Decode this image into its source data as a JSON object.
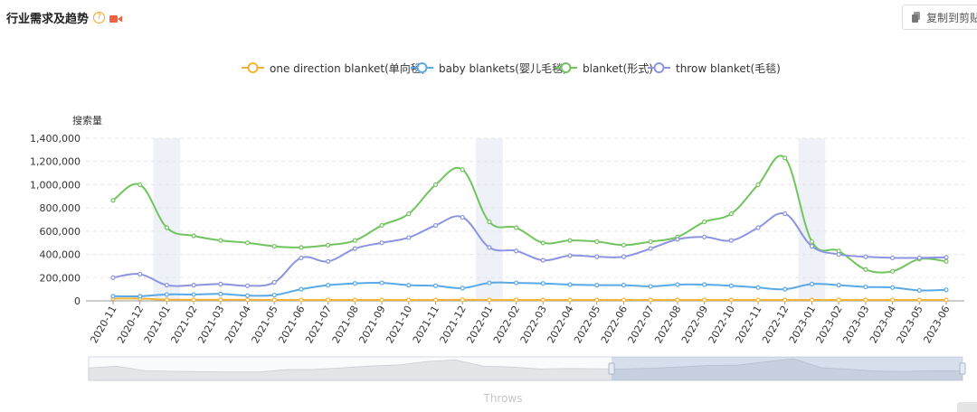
{
  "header": {
    "title": "行业需求及趋势",
    "help_symbol": "?",
    "video_icon": "video-camera-icon",
    "accent_color": "#f0623f"
  },
  "toolbar": {
    "copy_label": "复制到剪贴板",
    "copy_icon": "copy-icon"
  },
  "footer": {
    "data_zoom_label": "Throws"
  },
  "chart_data": {
    "type": "line",
    "ylabel": "搜索量",
    "xlabel": "",
    "ylim": [
      0,
      1400000
    ],
    "yticks": [
      0,
      200000,
      400000,
      600000,
      800000,
      1000000,
      1200000,
      1400000
    ],
    "ytick_labels": [
      "0",
      "200,000",
      "400,000",
      "600,000",
      "800,000",
      "1,000,000",
      "1,200,000",
      "1,400,000"
    ],
    "grid": true,
    "legend_position": "top-center",
    "categories": [
      "2020-11",
      "2020-12",
      "2021-01",
      "2021-02",
      "2021-03",
      "2021-04",
      "2021-05",
      "2021-06",
      "2021-07",
      "2021-08",
      "2021-09",
      "2021-10",
      "2021-11",
      "2021-12",
      "2022-01",
      "2022-02",
      "2022-03",
      "2022-04",
      "2022-05",
      "2022-06",
      "2022-07",
      "2022-08",
      "2022-09",
      "2022-10",
      "2022-11",
      "2022-12",
      "2023-01",
      "2023-02",
      "2023-03",
      "2023-04",
      "2023-05",
      "2023-06"
    ],
    "highlight_bands": [
      "2021-01",
      "2022-01",
      "2023-01"
    ],
    "series": [
      {
        "name": "one direction blanket(单向毯)",
        "color": "#f5b335",
        "values": [
          20000,
          20000,
          10000,
          10000,
          10000,
          10000,
          8000,
          8000,
          8000,
          8000,
          8000,
          8000,
          8000,
          10000,
          8000,
          8000,
          8000,
          8000,
          8000,
          8000,
          8000,
          8000,
          8000,
          8000,
          8000,
          8000,
          8000,
          8000,
          8000,
          8000,
          8000,
          8000
        ]
      },
      {
        "name": "baby blankets(婴儿毛毯)",
        "color": "#5aa9e6",
        "values": [
          40000,
          40000,
          55000,
          55000,
          60000,
          45000,
          50000,
          100000,
          135000,
          150000,
          155000,
          135000,
          130000,
          110000,
          155000,
          155000,
          150000,
          140000,
          135000,
          135000,
          125000,
          140000,
          140000,
          130000,
          115000,
          100000,
          145000,
          135000,
          120000,
          115000,
          90000,
          95000
        ]
      },
      {
        "name": "blanket(形式)",
        "color": "#72c45e",
        "values": [
          865000,
          1000000,
          630000,
          560000,
          520000,
          500000,
          470000,
          460000,
          480000,
          520000,
          650000,
          750000,
          1000000,
          1130000,
          680000,
          630000,
          500000,
          520000,
          510000,
          480000,
          510000,
          550000,
          680000,
          750000,
          1000000,
          1230000,
          510000,
          430000,
          270000,
          255000,
          360000,
          340000
        ]
      },
      {
        "name": "throw blanket(毛毯)",
        "color": "#8c93e0",
        "values": [
          200000,
          230000,
          135000,
          135000,
          145000,
          130000,
          160000,
          370000,
          340000,
          450000,
          500000,
          545000,
          650000,
          720000,
          460000,
          430000,
          350000,
          390000,
          380000,
          380000,
          450000,
          530000,
          550000,
          520000,
          630000,
          750000,
          470000,
          400000,
          380000,
          370000,
          370000,
          375000
        ]
      }
    ]
  }
}
